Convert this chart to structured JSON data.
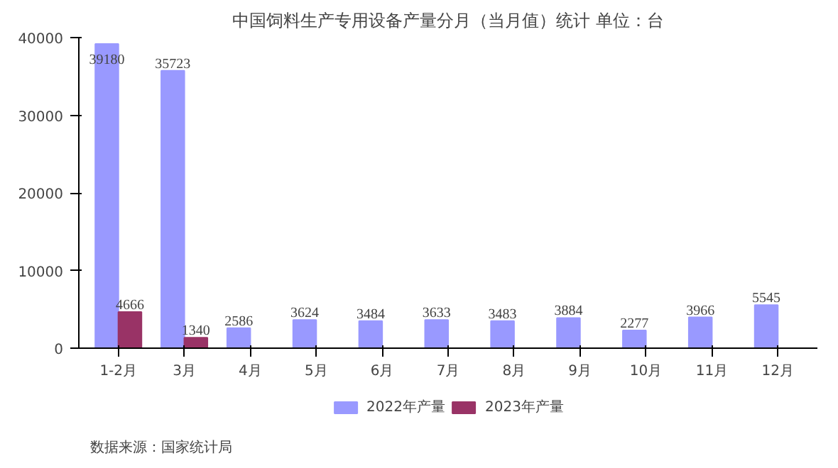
{
  "chart_data": {
    "type": "bar",
    "title": "中国饲料生产专用设备产量分月（当月值）统计 单位：台",
    "categories": [
      "1-2月",
      "3月",
      "4月",
      "5月",
      "6月",
      "7月",
      "8月",
      "9月",
      "10月",
      "11月",
      "12月"
    ],
    "series": [
      {
        "name": "2022年产量",
        "color": "#9999ff",
        "values": [
          39180,
          35723,
          2586,
          3624,
          3484,
          3633,
          3483,
          3884,
          2277,
          3966,
          5545
        ]
      },
      {
        "name": "2023年产量",
        "color": "#993366",
        "values": [
          4666,
          1340,
          null,
          null,
          null,
          null,
          null,
          null,
          null,
          null,
          null
        ]
      }
    ],
    "ylim": [
      0,
      40000
    ],
    "yticks": [
      0,
      10000,
      20000,
      30000,
      40000
    ],
    "grid": false,
    "legend": "bottom",
    "data_labels": true,
    "annotations": [
      "数据来源：国家统计局"
    ]
  }
}
